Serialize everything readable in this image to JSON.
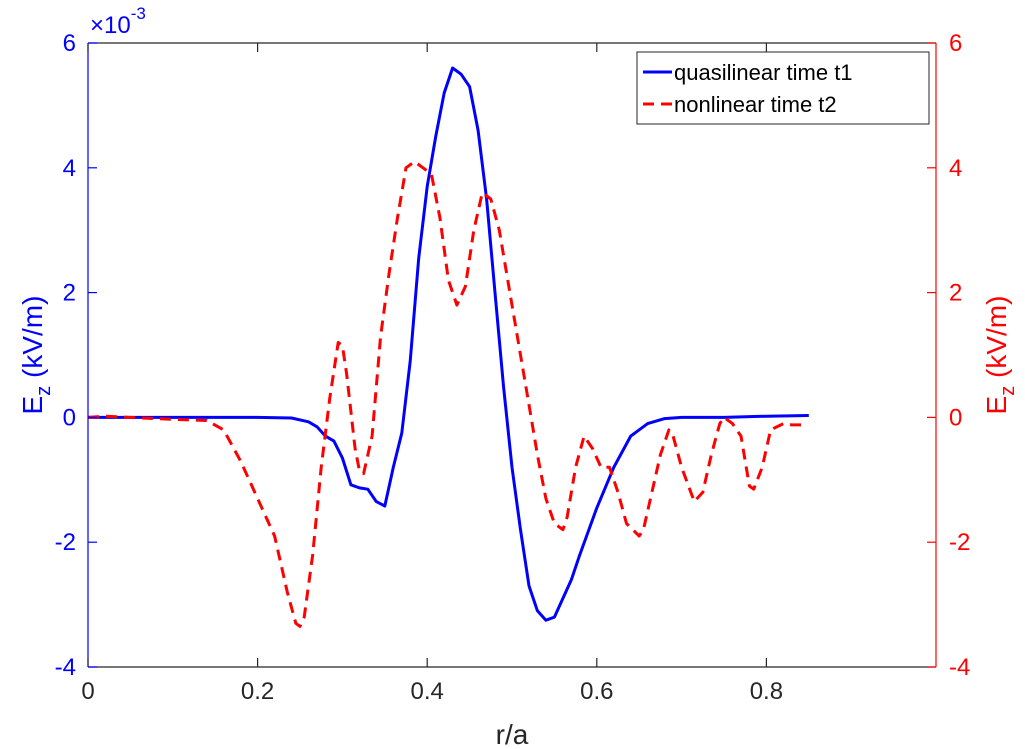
{
  "chart_data": {
    "type": "line",
    "title": "",
    "xlabel": "r/a",
    "xlim": [
      0,
      1
    ],
    "x_ticks": [
      0,
      0.2,
      0.4,
      0.6,
      0.8
    ],
    "x_tick_labels": [
      "0",
      "0.2",
      "0.4",
      "0.6",
      "0.8"
    ],
    "grid": false,
    "legend_placement": "top-right",
    "left_axis": {
      "label_main": "E",
      "label_sub": "z",
      "label_units": " (kV/m)",
      "color": "#0000ff",
      "ylim": [
        -0.004,
        0.006
      ],
      "ticks": [
        -0.004,
        -0.002,
        0,
        0.002,
        0.004,
        0.006
      ],
      "tick_labels": [
        "-4",
        "-2",
        "0",
        "2",
        "4",
        "6"
      ],
      "multiplier_prefix": "×10",
      "multiplier_exp": "-3"
    },
    "right_axis": {
      "label_main": "E",
      "label_sub": "z",
      "label_units": " (kV/m)",
      "color": "#ff0000",
      "ylim": [
        -4,
        6
      ],
      "ticks": [
        -4,
        -2,
        0,
        2,
        4,
        6
      ],
      "tick_labels": [
        "-4",
        "-2",
        "0",
        "2",
        "4",
        "6"
      ]
    },
    "series": [
      {
        "name": "quasilinear time t1",
        "axis": "left",
        "color": "#0000ff",
        "style": "solid",
        "x": [
          0,
          0.05,
          0.1,
          0.15,
          0.2,
          0.24,
          0.26,
          0.27,
          0.28,
          0.29,
          0.3,
          0.31,
          0.32,
          0.33,
          0.34,
          0.35,
          0.36,
          0.37,
          0.38,
          0.39,
          0.4,
          0.41,
          0.42,
          0.43,
          0.44,
          0.45,
          0.46,
          0.47,
          0.48,
          0.49,
          0.5,
          0.51,
          0.52,
          0.53,
          0.54,
          0.55,
          0.56,
          0.57,
          0.58,
          0.6,
          0.62,
          0.64,
          0.66,
          0.68,
          0.7,
          0.75,
          0.8,
          0.85
        ],
        "y": [
          0,
          0,
          0,
          0,
          0,
          -1e-05,
          -7e-05,
          -0.00015,
          -0.0003,
          -0.00038,
          -0.00065,
          -0.00108,
          -0.00113,
          -0.00115,
          -0.00135,
          -0.00142,
          -0.0008,
          -0.00025,
          0.0009,
          0.00255,
          0.0037,
          0.0045,
          0.0052,
          0.0056,
          0.0055,
          0.0053,
          0.0046,
          0.0035,
          0.002,
          0.0005,
          -0.0008,
          -0.0018,
          -0.0027,
          -0.0031,
          -0.00325,
          -0.0032,
          -0.0029,
          -0.0026,
          -0.0022,
          -0.00145,
          -0.0008,
          -0.0003,
          -0.0001,
          -2e-05,
          0,
          0,
          2e-05,
          3e-05
        ]
      },
      {
        "name": "nonlinear time t2",
        "axis": "right",
        "color": "#ff0000",
        "style": "dashed",
        "x": [
          0,
          0.02,
          0.05,
          0.08,
          0.1,
          0.12,
          0.14,
          0.16,
          0.18,
          0.2,
          0.22,
          0.235,
          0.245,
          0.25,
          0.255,
          0.265,
          0.275,
          0.285,
          0.295,
          0.3,
          0.305,
          0.315,
          0.32,
          0.325,
          0.335,
          0.345,
          0.355,
          0.365,
          0.375,
          0.385,
          0.395,
          0.405,
          0.415,
          0.425,
          0.435,
          0.445,
          0.455,
          0.465,
          0.475,
          0.485,
          0.5,
          0.51,
          0.52,
          0.53,
          0.54,
          0.55,
          0.56,
          0.565,
          0.575,
          0.585,
          0.595,
          0.605,
          0.615,
          0.625,
          0.635,
          0.65,
          0.655,
          0.665,
          0.675,
          0.685,
          0.69,
          0.7,
          0.715,
          0.725,
          0.735,
          0.745,
          0.75,
          0.76,
          0.77,
          0.78,
          0.785,
          0.795,
          0.805,
          0.82,
          0.83,
          0.845
        ],
        "y": [
          0,
          0.02,
          0,
          -0.02,
          -0.03,
          -0.04,
          -0.05,
          -0.2,
          -0.7,
          -1.3,
          -1.9,
          -2.8,
          -3.3,
          -3.35,
          -3.2,
          -2.2,
          -0.8,
          0.3,
          1.2,
          1.15,
          0.7,
          -0.5,
          -0.85,
          -0.9,
          -0.3,
          1.3,
          2.3,
          3.2,
          4.0,
          4.1,
          4.0,
          3.9,
          3.2,
          2.2,
          1.8,
          2.1,
          3.0,
          3.6,
          3.5,
          3.0,
          1.8,
          1.0,
          0.2,
          -0.6,
          -1.3,
          -1.7,
          -1.8,
          -1.6,
          -0.8,
          -0.3,
          -0.5,
          -0.8,
          -0.8,
          -1.2,
          -1.7,
          -1.9,
          -1.8,
          -1.2,
          -0.6,
          -0.2,
          -0.3,
          -0.8,
          -1.35,
          -1.2,
          -0.6,
          -0.1,
          0,
          -0.1,
          -0.3,
          -1.1,
          -1.15,
          -0.8,
          -0.2,
          -0.1,
          -0.12,
          -0.12
        ]
      }
    ]
  }
}
